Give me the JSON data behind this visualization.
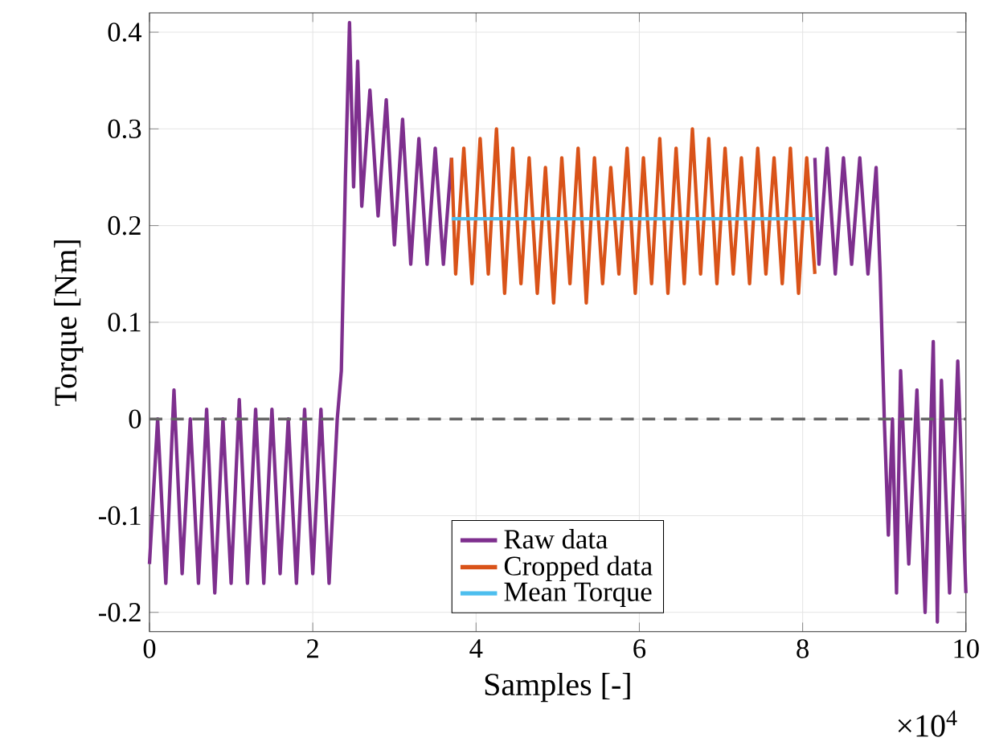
{
  "chart_data": {
    "type": "line",
    "xlabel": "Samples [-]",
    "ylabel": "Torque [Nm]",
    "xlim": [
      0,
      10
    ],
    "ylim": [
      -0.22,
      0.42
    ],
    "xticks": [
      0,
      2,
      4,
      6,
      8,
      10
    ],
    "yticks": [
      -0.2,
      -0.1,
      0,
      0.1,
      0.2,
      0.3,
      0.4
    ],
    "grid": true,
    "legend": "bottom",
    "line_style": "solid",
    "marker": "none",
    "annotations": [
      "×10$^{4}$"
    ],
    "ref_lines": [
      {
        "axis": "y",
        "value": 0,
        "color": "#666666",
        "line_style": "dashed"
      }
    ],
    "series": [
      {
        "name": "Raw data",
        "color": "#7e2f8e",
        "x": [
          0,
          0.1,
          0.2,
          0.3,
          0.4,
          0.5,
          0.6,
          0.7,
          0.8,
          0.9,
          1.0,
          1.1,
          1.2,
          1.3,
          1.4,
          1.5,
          1.6,
          1.7,
          1.8,
          1.9,
          2.0,
          2.1,
          2.2,
          2.3,
          2.35,
          2.4,
          2.45,
          2.5,
          2.55,
          2.6,
          2.7,
          2.8,
          2.9,
          3.0,
          3.1,
          3.2,
          3.3,
          3.4,
          3.5,
          3.6,
          3.7,
          5.9,
          8.15,
          8.2,
          8.3,
          8.4,
          8.5,
          8.6,
          8.7,
          8.8,
          8.9,
          8.95,
          9.0,
          9.05,
          9.1,
          9.15,
          9.2,
          9.3,
          9.4,
          9.5,
          9.6,
          9.65,
          9.7,
          9.8,
          9.9,
          10
        ],
        "values": [
          -0.15,
          0.0,
          -0.17,
          0.03,
          -0.16,
          0.0,
          -0.17,
          0.01,
          -0.18,
          0.0,
          -0.17,
          0.02,
          -0.17,
          0.01,
          -0.17,
          0.01,
          -0.16,
          0.0,
          -0.17,
          0.01,
          -0.16,
          0.01,
          -0.17,
          0.0,
          0.05,
          0.25,
          0.41,
          0.24,
          0.37,
          0.22,
          0.34,
          0.21,
          0.33,
          0.18,
          0.31,
          0.16,
          0.29,
          0.16,
          0.28,
          0.16,
          0.27,
          null,
          0.27,
          0.16,
          0.28,
          0.15,
          0.27,
          0.16,
          0.27,
          0.15,
          0.26,
          0.15,
          0.0,
          -0.12,
          0.0,
          -0.18,
          0.05,
          -0.15,
          0.03,
          -0.2,
          0.08,
          -0.21,
          0.04,
          -0.18,
          0.06,
          -0.18
        ]
      },
      {
        "name": "Cropped data",
        "color": "#d95319",
        "x": [
          3.7,
          3.75,
          3.85,
          3.95,
          4.05,
          4.15,
          4.25,
          4.35,
          4.45,
          4.55,
          4.65,
          4.75,
          4.85,
          4.95,
          5.05,
          5.15,
          5.25,
          5.35,
          5.45,
          5.55,
          5.65,
          5.75,
          5.85,
          5.95,
          6.05,
          6.15,
          6.25,
          6.35,
          6.45,
          6.55,
          6.65,
          6.75,
          6.85,
          6.95,
          7.05,
          7.15,
          7.25,
          7.35,
          7.45,
          7.55,
          7.65,
          7.75,
          7.85,
          7.95,
          8.05,
          8.15
        ],
        "values": [
          0.27,
          0.15,
          0.28,
          0.14,
          0.29,
          0.15,
          0.3,
          0.13,
          0.28,
          0.14,
          0.27,
          0.13,
          0.26,
          0.12,
          0.27,
          0.14,
          0.28,
          0.12,
          0.27,
          0.14,
          0.26,
          0.15,
          0.28,
          0.13,
          0.27,
          0.14,
          0.29,
          0.13,
          0.28,
          0.14,
          0.3,
          0.15,
          0.29,
          0.14,
          0.28,
          0.15,
          0.27,
          0.14,
          0.28,
          0.15,
          0.27,
          0.14,
          0.28,
          0.13,
          0.27,
          0.15
        ]
      },
      {
        "name": "Mean Torque",
        "color": "#4dbeee",
        "x": [
          3.7,
          8.15
        ],
        "values": [
          0.207,
          0.207
        ]
      }
    ]
  }
}
